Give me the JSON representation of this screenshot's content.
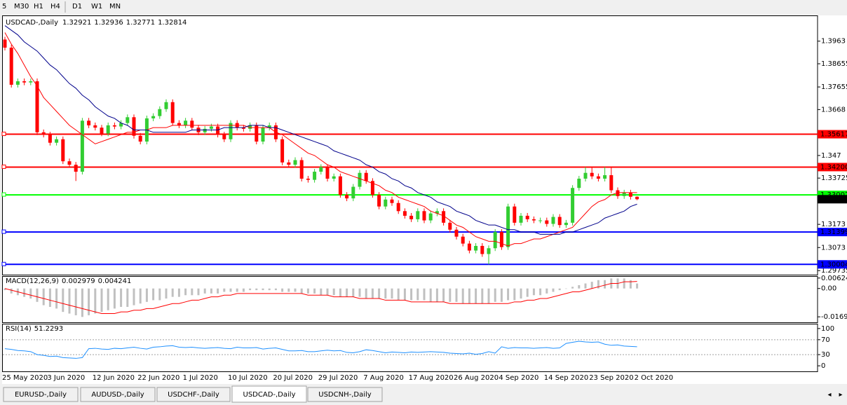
{
  "toolbar": {
    "timeframes": [
      "5",
      "M30",
      "H1",
      "H4",
      "D1",
      "W1",
      "MN"
    ]
  },
  "tabs": {
    "items": [
      "EURUSD-,Daily",
      "AUDUSD-,Daily",
      "USDCHF-,Daily",
      "USDCAD-,Daily",
      "USDCNH-,Daily"
    ],
    "active": 3
  },
  "chart_data": [
    {
      "type": "candlestick",
      "title": "USDCAD-,Daily",
      "bull_color": "#32cd32",
      "bear_color": "#ff0000",
      "categories": [
        "25 May 2020",
        null,
        null,
        null,
        null,
        null,
        null,
        "3 Jun 2020",
        null,
        null,
        null,
        null,
        null,
        null,
        "12 Jun 2020",
        null,
        null,
        null,
        null,
        null,
        null,
        "22 Jun 2020",
        null,
        null,
        null,
        null,
        null,
        null,
        "1 Jul 2020",
        null,
        null,
        null,
        null,
        null,
        null,
        "10 Jul 2020",
        null,
        null,
        null,
        null,
        null,
        null,
        "20 Jul 2020",
        null,
        null,
        null,
        null,
        null,
        null,
        "29 Jul 2020",
        null,
        null,
        null,
        null,
        null,
        null,
        "7 Aug 2020",
        null,
        null,
        null,
        null,
        null,
        null,
        "17 Aug 2020",
        null,
        null,
        null,
        null,
        null,
        null,
        "26 Aug 2020",
        null,
        null,
        null,
        null,
        null,
        null,
        "4 Sep 2020",
        null,
        null,
        null,
        null,
        null,
        null,
        "14 Sep 2020",
        null,
        null,
        null,
        null,
        null,
        null,
        "23 Sep 2020",
        null,
        null,
        null,
        null,
        null,
        null,
        "2 Oct 2020"
      ],
      "open": [
        1.397,
        1.3935,
        1.3775,
        1.379,
        1.3785,
        1.379,
        1.357,
        1.356,
        1.3525,
        1.354,
        1.3445,
        1.343,
        1.34,
        1.362,
        1.36,
        1.359,
        1.3565,
        1.36,
        1.3595,
        1.361,
        1.3635,
        1.3555,
        1.353,
        1.363,
        1.364,
        1.367,
        1.37,
        1.361,
        1.36,
        1.362,
        1.359,
        1.357,
        1.3585,
        1.3595,
        1.356,
        1.354,
        1.361,
        1.359,
        1.3585,
        1.36,
        1.353,
        1.359,
        1.36,
        1.354,
        1.344,
        1.343,
        1.345,
        1.337,
        1.3365,
        1.34,
        1.342,
        1.337,
        1.338,
        1.33,
        1.3285,
        1.3335,
        1.3395,
        1.336,
        1.33,
        1.325,
        1.328,
        1.3265,
        1.323,
        1.321,
        1.3195,
        1.323,
        1.319,
        1.322,
        1.323,
        1.318,
        1.315,
        1.312,
        1.309,
        1.306,
        1.308,
        1.3045,
        1.307,
        1.314,
        1.3075,
        1.325,
        1.318,
        1.321,
        1.3195,
        1.319,
        1.319,
        1.3175,
        1.3205,
        1.317,
        1.318,
        1.333,
        1.337,
        1.3395,
        1.338,
        1.337,
        1.3385,
        1.332,
        1.3295,
        1.331,
        1.32921
      ],
      "high": [
        1.3982,
        1.3947,
        1.3802,
        1.3802,
        1.3802,
        1.3802,
        1.3582,
        1.3572,
        1.3552,
        1.3552,
        1.3457,
        1.3442,
        1.3632,
        1.3632,
        1.3612,
        1.3602,
        1.3612,
        1.3612,
        1.3622,
        1.3647,
        1.3647,
        1.3567,
        1.3642,
        1.3652,
        1.3682,
        1.3712,
        1.3712,
        1.3622,
        1.3632,
        1.3632,
        1.3602,
        1.3597,
        1.3607,
        1.3607,
        1.3572,
        1.3622,
        1.3622,
        1.3602,
        1.3612,
        1.3612,
        1.3602,
        1.3612,
        1.3612,
        1.3552,
        1.3452,
        1.3462,
        1.3462,
        1.3382,
        1.3412,
        1.3432,
        1.3432,
        1.3392,
        1.3392,
        1.3312,
        1.3347,
        1.3407,
        1.3407,
        1.3372,
        1.3312,
        1.3292,
        1.3292,
        1.3277,
        1.3242,
        1.3222,
        1.3242,
        1.3242,
        1.3232,
        1.3242,
        1.3242,
        1.3192,
        1.3162,
        1.3132,
        1.3102,
        1.3092,
        1.3092,
        1.3082,
        1.3152,
        1.3152,
        1.3262,
        1.3262,
        1.3222,
        1.3222,
        1.3207,
        1.3202,
        1.3202,
        1.3217,
        1.3217,
        1.3192,
        1.3342,
        1.3382,
        1.342,
        1.342,
        1.3392,
        1.342,
        1.342,
        1.3332,
        1.3322,
        1.3322,
        1.32936
      ],
      "low": [
        1.3923,
        1.3763,
        1.3763,
        1.3773,
        1.3773,
        1.3558,
        1.3548,
        1.3513,
        1.3513,
        1.3433,
        1.3418,
        1.336,
        1.3388,
        1.3588,
        1.3578,
        1.3553,
        1.3553,
        1.3583,
        1.3583,
        1.3598,
        1.3543,
        1.3518,
        1.3518,
        1.3618,
        1.3628,
        1.3658,
        1.3598,
        1.3588,
        1.3588,
        1.3578,
        1.3558,
        1.3558,
        1.3573,
        1.3548,
        1.3528,
        1.3528,
        1.3578,
        1.3573,
        1.3573,
        1.3518,
        1.3518,
        1.3578,
        1.3528,
        1.3428,
        1.3418,
        1.3418,
        1.3358,
        1.3353,
        1.3353,
        1.3388,
        1.3358,
        1.3358,
        1.3288,
        1.3273,
        1.3273,
        1.3323,
        1.3348,
        1.3288,
        1.3238,
        1.3238,
        1.3253,
        1.3218,
        1.3198,
        1.3183,
        1.3183,
        1.3178,
        1.3178,
        1.3208,
        1.3168,
        1.3138,
        1.3108,
        1.3078,
        1.3048,
        1.3048,
        1.3033,
        1.3,
        1.3058,
        1.3063,
        1.3063,
        1.3168,
        1.3168,
        1.3183,
        1.3178,
        1.3178,
        1.3163,
        1.3163,
        1.3158,
        1.3158,
        1.3168,
        1.3318,
        1.3358,
        1.3368,
        1.3358,
        1.3358,
        1.3308,
        1.3283,
        1.3283,
        1.328,
        1.32771
      ],
      "close": [
        1.3935,
        1.3775,
        1.379,
        1.3785,
        1.379,
        1.357,
        1.356,
        1.3525,
        1.354,
        1.3445,
        1.343,
        1.34,
        1.362,
        1.36,
        1.359,
        1.3565,
        1.36,
        1.3595,
        1.361,
        1.3635,
        1.3555,
        1.353,
        1.363,
        1.364,
        1.367,
        1.37,
        1.361,
        1.36,
        1.362,
        1.359,
        1.357,
        1.3585,
        1.3595,
        1.356,
        1.354,
        1.361,
        1.359,
        1.3585,
        1.36,
        1.353,
        1.359,
        1.36,
        1.354,
        1.344,
        1.343,
        1.345,
        1.337,
        1.3365,
        1.34,
        1.342,
        1.337,
        1.338,
        1.33,
        1.3285,
        1.3335,
        1.3395,
        1.336,
        1.33,
        1.325,
        1.328,
        1.3265,
        1.323,
        1.321,
        1.3195,
        1.323,
        1.319,
        1.322,
        1.323,
        1.318,
        1.315,
        1.312,
        1.309,
        1.306,
        1.308,
        1.3045,
        1.307,
        1.314,
        1.3075,
        1.325,
        1.318,
        1.321,
        1.3195,
        1.319,
        1.319,
        1.3175,
        1.3205,
        1.317,
        1.318,
        1.333,
        1.337,
        1.3395,
        1.338,
        1.337,
        1.3385,
        1.332,
        1.3295,
        1.331,
        1.32921,
        1.32814
      ],
      "overlays": [
        {
          "color": "#ff0000",
          "values": [
            1.4,
            1.395,
            1.391,
            1.386,
            1.381,
            1.377,
            1.372,
            1.369,
            1.366,
            1.363,
            1.36,
            1.358,
            1.356,
            1.354,
            1.352,
            1.353,
            1.354,
            1.355,
            1.356,
            1.357,
            1.357,
            1.358,
            1.358,
            1.359,
            1.359,
            1.359,
            1.36,
            1.36,
            1.36,
            1.36,
            1.36,
            1.36,
            1.36,
            1.36,
            1.36,
            1.36,
            1.36,
            1.36,
            1.359,
            1.359,
            1.359,
            1.359,
            1.357,
            1.356,
            1.354,
            1.352,
            1.35,
            1.348,
            1.347,
            1.345,
            1.343,
            1.342,
            1.34,
            1.339,
            1.338,
            1.337,
            1.336,
            1.335,
            1.334,
            1.332,
            1.331,
            1.329,
            1.328,
            1.327,
            1.326,
            1.325,
            1.323,
            1.322,
            1.321,
            1.319,
            1.317,
            1.316,
            1.314,
            1.312,
            1.311,
            1.31,
            1.31,
            1.309,
            1.308,
            1.309,
            1.309,
            1.31,
            1.311,
            1.311,
            1.312,
            1.313,
            1.314,
            1.315,
            1.316,
            1.319,
            1.322,
            1.325,
            1.327,
            1.328,
            1.33,
            1.331,
            1.331,
            1.331,
            1.331
          ]
        },
        {
          "color": "#00008b",
          "values": [
            1.403,
            1.401,
            1.399,
            1.396,
            1.394,
            1.392,
            1.389,
            1.386,
            1.384,
            1.381,
            1.378,
            1.376,
            1.373,
            1.371,
            1.368,
            1.366,
            1.364,
            1.363,
            1.361,
            1.36,
            1.358,
            1.358,
            1.358,
            1.357,
            1.357,
            1.357,
            1.357,
            1.357,
            1.357,
            1.358,
            1.358,
            1.358,
            1.358,
            1.358,
            1.359,
            1.359,
            1.359,
            1.359,
            1.36,
            1.36,
            1.36,
            1.359,
            1.359,
            1.358,
            1.357,
            1.356,
            1.355,
            1.354,
            1.353,
            1.352,
            1.351,
            1.349,
            1.348,
            1.347,
            1.346,
            1.345,
            1.343,
            1.342,
            1.34,
            1.339,
            1.337,
            1.336,
            1.334,
            1.333,
            1.331,
            1.33,
            1.329,
            1.327,
            1.326,
            1.325,
            1.323,
            1.322,
            1.321,
            1.319,
            1.318,
            1.317,
            1.317,
            1.316,
            1.315,
            1.315,
            1.314,
            1.314,
            1.314,
            1.313,
            1.313,
            1.313,
            1.313,
            1.314,
            1.314,
            1.315,
            1.316,
            1.317,
            1.318,
            1.32,
            1.321,
            1.322,
            1.323,
            1.325,
            1.326
          ]
        }
      ],
      "levels": [
        {
          "value": 1.35617,
          "color": "#ff0000"
        },
        {
          "value": 1.342,
          "label": "1.34200",
          "color": "#ff0000"
        },
        {
          "value": 1.33002,
          "color": "#00ff00"
        },
        {
          "value": 1.31399,
          "color": "#0000ff"
        },
        {
          "value": 1.30004,
          "color": "#0000ff"
        }
      ],
      "ylim": [
        1.2959,
        1.4071
      ],
      "yticks": [
        1.3963,
        1.38655,
        1.37655,
        1.3668,
        1.347,
        1.33725,
        1.3173,
        1.3073,
        1.29735
      ]
    },
    {
      "type": "bar",
      "title": "MACD(12,26,9)",
      "color": "#c0c0c0",
      "signal_color": "#ff0000",
      "values": [
        -0.001,
        -0.003,
        -0.004,
        -0.005,
        -0.006,
        -0.008,
        -0.01,
        -0.011,
        -0.012,
        -0.014,
        -0.015,
        -0.016,
        -0.017,
        -0.016,
        -0.015,
        -0.014,
        -0.013,
        -0.012,
        -0.011,
        -0.011,
        -0.01,
        -0.009,
        -0.008,
        -0.007,
        -0.007,
        -0.006,
        -0.005,
        -0.005,
        -0.004,
        -0.004,
        -0.004,
        -0.003,
        -0.003,
        -0.003,
        -0.002,
        -0.002,
        -0.002,
        -0.002,
        -0.001,
        -0.001,
        -0.001,
        -0.001,
        -0.001,
        -0.002,
        -0.002,
        -0.002,
        -0.003,
        -0.003,
        -0.003,
        -0.004,
        -0.004,
        -0.004,
        -0.005,
        -0.005,
        -0.005,
        -0.005,
        -0.006,
        -0.006,
        -0.006,
        -0.006,
        -0.006,
        -0.007,
        -0.007,
        -0.007,
        -0.007,
        -0.007,
        -0.008,
        -0.008,
        -0.008,
        -0.008,
        -0.008,
        -0.009,
        -0.009,
        -0.009,
        -0.009,
        -0.009,
        -0.008,
        -0.008,
        -0.007,
        -0.007,
        -0.006,
        -0.005,
        -0.004,
        -0.004,
        -0.003,
        -0.002,
        -0.001,
        0.0,
        0.001,
        0.002,
        0.003,
        0.004,
        0.005,
        0.005,
        0.006,
        0.006,
        0.006,
        0.005,
        0.002979
      ],
      "signal": [
        0.0,
        -0.001,
        -0.002,
        -0.003,
        -0.004,
        -0.005,
        -0.006,
        -0.007,
        -0.008,
        -0.009,
        -0.01,
        -0.011,
        -0.012,
        -0.013,
        -0.014,
        -0.015,
        -0.015,
        -0.015,
        -0.014,
        -0.014,
        -0.013,
        -0.013,
        -0.012,
        -0.012,
        -0.011,
        -0.01,
        -0.009,
        -0.009,
        -0.008,
        -0.007,
        -0.007,
        -0.006,
        -0.005,
        -0.005,
        -0.004,
        -0.004,
        -0.003,
        -0.003,
        -0.003,
        -0.003,
        -0.003,
        -0.003,
        -0.003,
        -0.003,
        -0.003,
        -0.003,
        -0.003,
        -0.004,
        -0.004,
        -0.004,
        -0.004,
        -0.005,
        -0.005,
        -0.005,
        -0.005,
        -0.006,
        -0.006,
        -0.006,
        -0.006,
        -0.007,
        -0.007,
        -0.007,
        -0.007,
        -0.008,
        -0.008,
        -0.008,
        -0.008,
        -0.008,
        -0.008,
        -0.009,
        -0.009,
        -0.009,
        -0.009,
        -0.009,
        -0.009,
        -0.009,
        -0.009,
        -0.009,
        -0.009,
        -0.008,
        -0.008,
        -0.007,
        -0.007,
        -0.006,
        -0.006,
        -0.005,
        -0.004,
        -0.003,
        -0.002,
        -0.002,
        -0.001,
        0.0,
        0.001,
        0.002,
        0.003,
        0.003,
        0.004,
        0.004,
        0.004241
      ],
      "ylim": [
        -0.0198,
        0.007
      ],
      "yticks": [
        0.006245,
        {
          "value": 0,
          "label": "0.00"
        },
        -0.016933
      ]
    },
    {
      "type": "line",
      "title": "RSI(14)",
      "color": "#1e90ff",
      "values": [
        46,
        44,
        41,
        40,
        38,
        30,
        28,
        25,
        26,
        22,
        21,
        20,
        22,
        46,
        47,
        45,
        44,
        47,
        46,
        48,
        50,
        47,
        45,
        50,
        51,
        53,
        54,
        50,
        49,
        50,
        48,
        47,
        48,
        49,
        47,
        46,
        50,
        48,
        48,
        49,
        45,
        47,
        48,
        44,
        40,
        40,
        41,
        38,
        38,
        40,
        42,
        40,
        41,
        36,
        35,
        38,
        43,
        41,
        38,
        35,
        37,
        36,
        35,
        37,
        36,
        37,
        38,
        37,
        36,
        34,
        33,
        32,
        34,
        31,
        33,
        38,
        34,
        51,
        47,
        49,
        48,
        48,
        47,
        48,
        49,
        47,
        48,
        60,
        63,
        66,
        64,
        63,
        64,
        58,
        55,
        56,
        53,
        52,
        51.2293
      ],
      "levels": [
        70,
        30
      ],
      "ylim": [
        -13,
        111
      ],
      "yticks": [
        100,
        70,
        30,
        0
      ]
    }
  ]
}
